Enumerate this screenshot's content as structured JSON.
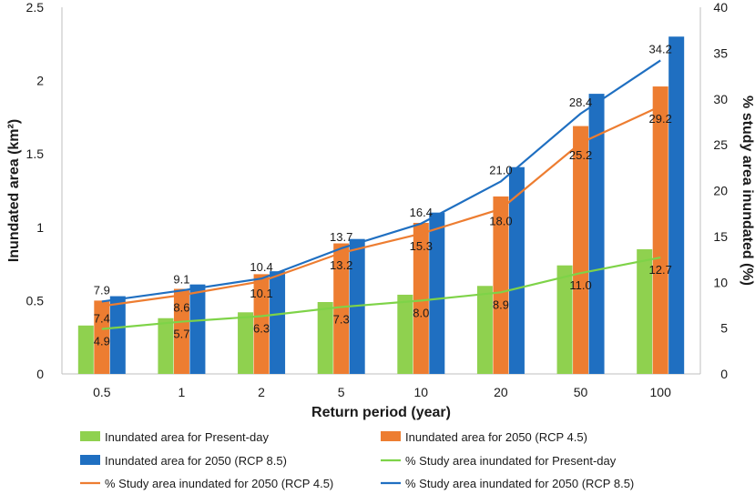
{
  "chart_data": {
    "type": "bar",
    "xlabel": "Return period (year)",
    "ylabel": "Inundated area (km²)",
    "y2label": "% study area inundated (%)",
    "ylim": [
      0,
      2.5
    ],
    "y2lim": [
      0,
      40
    ],
    "yticks": [
      "0",
      "0.5",
      "1",
      "1.5",
      "2",
      "2.5"
    ],
    "y2ticks": [
      "0",
      "5",
      "10",
      "15",
      "20",
      "25",
      "30",
      "35",
      "40"
    ],
    "categories": [
      "0.5",
      "1",
      "2",
      "5",
      "10",
      "20",
      "50",
      "100"
    ],
    "bar_series": [
      {
        "name": "Inundated area for Present-day",
        "color": "#8fd14f",
        "values": [
          0.33,
          0.38,
          0.42,
          0.49,
          0.54,
          0.6,
          0.74,
          0.85
        ]
      },
      {
        "name": "Inundated area for 2050 (RCP 4.5)",
        "color": "#ed7d31",
        "values": [
          0.5,
          0.58,
          0.68,
          0.89,
          1.03,
          1.21,
          1.69,
          1.96
        ]
      },
      {
        "name": "Inundated area for 2050 (RCP 8.5)",
        "color": "#1f6fc1",
        "values": [
          0.53,
          0.61,
          0.7,
          0.92,
          1.1,
          1.41,
          1.91,
          2.3
        ]
      }
    ],
    "line_series": [
      {
        "name": "% Study area inundated for Present-day",
        "color": "#7ed348",
        "values": [
          4.9,
          5.7,
          6.3,
          7.3,
          8.0,
          8.9,
          11.0,
          12.7
        ],
        "labels": [
          "4.9",
          "5.7",
          "6.3",
          "7.3",
          "8.0",
          "8.9",
          "11.0",
          "12.7"
        ]
      },
      {
        "name": "% Study area inundated for 2050 (RCP 4.5)",
        "color": "#ed7d31",
        "values": [
          7.4,
          8.6,
          10.1,
          13.2,
          15.3,
          18.0,
          25.2,
          29.2
        ],
        "labels": [
          "7.4",
          "8.6",
          "10.1",
          "13.2",
          "15.3",
          "18.0",
          "25.2",
          "29.2"
        ]
      },
      {
        "name": "% Study area inundated for 2050 (RCP 8.5)",
        "color": "#1f6fc1",
        "values": [
          7.9,
          9.1,
          10.4,
          13.7,
          16.4,
          21.0,
          28.4,
          34.2
        ],
        "labels": [
          "7.9",
          "9.1",
          "10.4",
          "13.7",
          "16.4",
          "21.0",
          "28.4",
          "34.2"
        ]
      }
    ],
    "legend": [
      {
        "label": "Inundated area for Present-day",
        "kind": "bar",
        "color": "#8fd14f"
      },
      {
        "label": "Inundated area for 2050 (RCP 4.5)",
        "kind": "bar",
        "color": "#ed7d31"
      },
      {
        "label": "Inundated area for 2050 (RCP 8.5)",
        "kind": "bar",
        "color": "#1f6fc1"
      },
      {
        "label": "% Study area inundated for Present-day",
        "kind": "line",
        "color": "#7ed348"
      },
      {
        "label": "% Study area inundated for 2050 (RCP 4.5)",
        "kind": "line",
        "color": "#ed7d31"
      },
      {
        "label": "% Study area inundated for 2050 (RCP 8.5)",
        "kind": "line",
        "color": "#1f6fc1"
      }
    ],
    "legend_position": "bottom",
    "grid": false
  }
}
